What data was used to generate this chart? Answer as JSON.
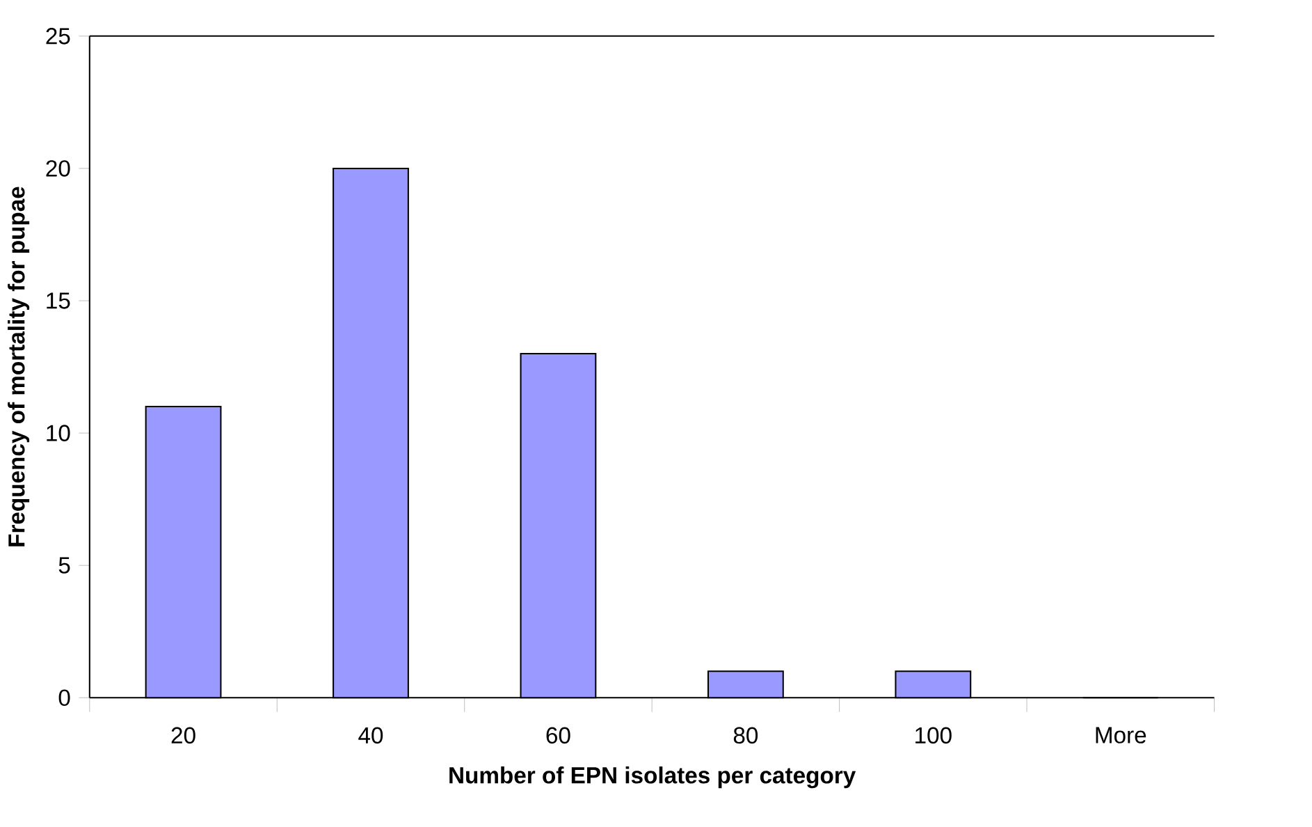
{
  "chart_data": {
    "type": "bar",
    "xlabel": "Number of EPN isolates per category",
    "ylabel": "Frequency of mortality for pupae",
    "categories": [
      "20",
      "40",
      "60",
      "80",
      "100",
      "More"
    ],
    "values": [
      11,
      20,
      13,
      1,
      1,
      0
    ],
    "color": "#9999ff",
    "ylim": [
      0,
      25
    ],
    "yticks": [
      0,
      5,
      10,
      15,
      20,
      25
    ],
    "grid": false
  }
}
